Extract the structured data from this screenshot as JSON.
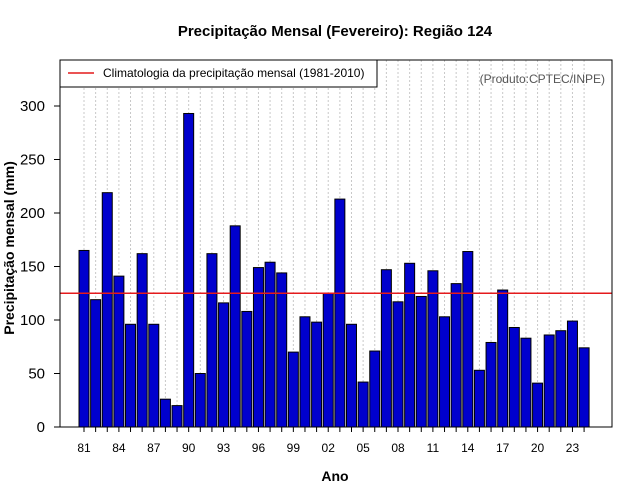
{
  "chart_data": {
    "type": "bar",
    "title": "Precipitação Mensal (Fevereiro): Região 124",
    "xlabel": "Ano",
    "ylabel": "Precipitação mensal (mm)",
    "source_note": "(Produto:CPTEC/INPE)",
    "legend": {
      "label": "Climatologia da precipitação mensal (1981-2010)",
      "placement": "top-left"
    },
    "climatology": 125,
    "ylim": [
      0,
      340
    ],
    "yticks": [
      0,
      50,
      100,
      150,
      200,
      250,
      300
    ],
    "categories": [
      "1981",
      "1982",
      "1983",
      "1984",
      "1985",
      "1986",
      "1987",
      "1988",
      "1989",
      "1990",
      "1991",
      "1992",
      "1993",
      "1994",
      "1995",
      "1996",
      "1997",
      "1998",
      "1999",
      "2000",
      "2001",
      "2002",
      "2003",
      "2004",
      "2005",
      "2006",
      "2007",
      "2008",
      "2009",
      "2010",
      "2011",
      "2012",
      "2013",
      "2014",
      "2015",
      "2016",
      "2017",
      "2018",
      "2019",
      "2020",
      "2021",
      "2022",
      "2023",
      "2024"
    ],
    "x_tick_labels": [
      {
        "category": "1981",
        "label": "81"
      },
      {
        "category": "1984",
        "label": "84"
      },
      {
        "category": "1987",
        "label": "87"
      },
      {
        "category": "1990",
        "label": "90"
      },
      {
        "category": "1993",
        "label": "93"
      },
      {
        "category": "1996",
        "label": "96"
      },
      {
        "category": "1999",
        "label": "99"
      },
      {
        "category": "2002",
        "label": "02"
      },
      {
        "category": "2005",
        "label": "05"
      },
      {
        "category": "2008",
        "label": "08"
      },
      {
        "category": "2011",
        "label": "11"
      },
      {
        "category": "2014",
        "label": "14"
      },
      {
        "category": "2017",
        "label": "17"
      },
      {
        "category": "2020",
        "label": "20"
      },
      {
        "category": "2023",
        "label": "23"
      }
    ],
    "series": [
      {
        "name": "Precipitação mensal",
        "values": [
          165,
          119,
          219,
          141,
          96,
          162,
          96,
          26,
          20,
          293,
          50,
          162,
          116,
          188,
          108,
          149,
          154,
          144,
          70,
          103,
          98,
          125,
          213,
          96,
          42,
          71,
          147,
          117,
          153,
          122,
          146,
          103,
          134,
          164,
          53,
          79,
          128,
          93,
          83,
          41,
          86,
          90,
          99,
          74
        ]
      }
    ],
    "colors": {
      "bar": "#0000cd",
      "bar_edge": "#000000",
      "climatology_line": "#e41a1c",
      "grid": "#c8c8c8"
    },
    "grid": true
  }
}
